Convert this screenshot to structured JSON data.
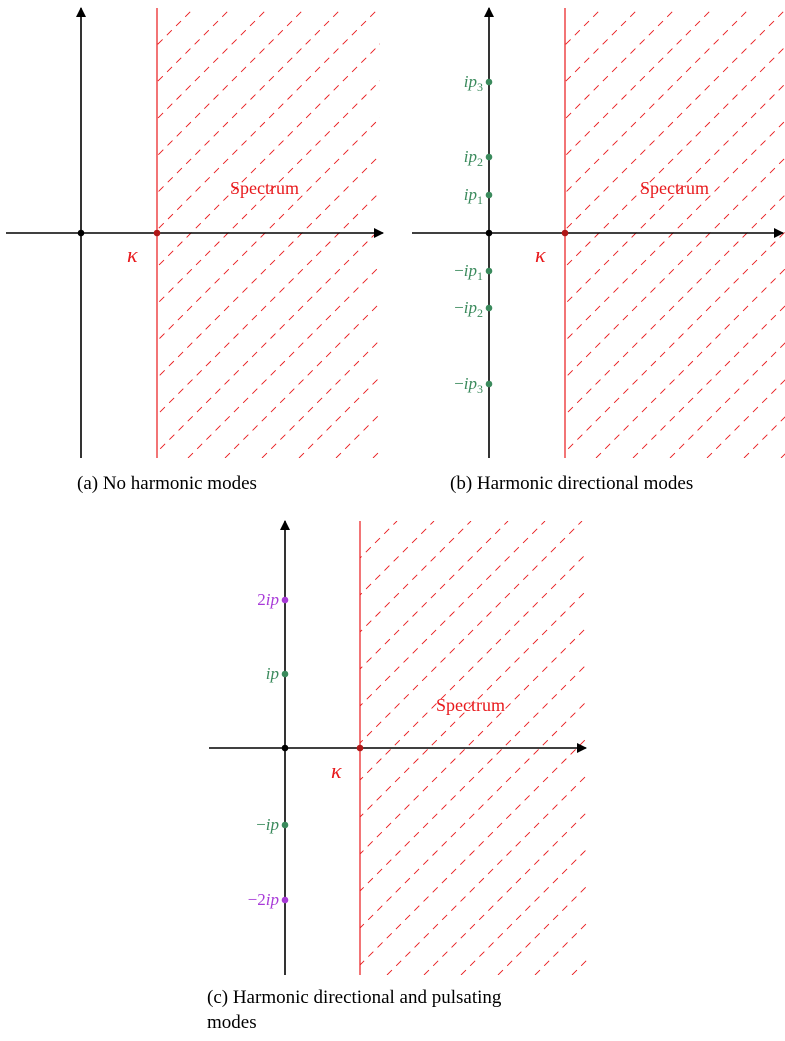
{
  "colors": {
    "axis": "#000000",
    "spectrum": "#e8191c",
    "directional": "#3a8a5c",
    "pulsating": "#a83ad8"
  },
  "panels": [
    {
      "id": "a",
      "caption": "(a) No harmonic modes",
      "spectrum_label": "Spectrum",
      "threshold_label": "κ",
      "points": []
    },
    {
      "id": "b",
      "caption": "(b) Harmonic directional modes",
      "spectrum_label": "Spectrum",
      "threshold_label": "κ",
      "points": [
        {
          "base": "ip",
          "sub": "3",
          "sign": "",
          "kind": "directional"
        },
        {
          "base": "ip",
          "sub": "2",
          "sign": "",
          "kind": "directional"
        },
        {
          "base": "ip",
          "sub": "1",
          "sign": "",
          "kind": "directional"
        },
        {
          "base": "ip",
          "sub": "1",
          "sign": "−",
          "kind": "directional"
        },
        {
          "base": "ip",
          "sub": "2",
          "sign": "−",
          "kind": "directional"
        },
        {
          "base": "ip",
          "sub": "3",
          "sign": "−",
          "kind": "directional"
        }
      ]
    },
    {
      "id": "c",
      "caption_line1": "(c) Harmonic directional and pulsating",
      "caption_line2": "modes",
      "spectrum_label": "Spectrum",
      "threshold_label": "κ",
      "points": [
        {
          "coef": "2",
          "base": "ip",
          "sign": "",
          "kind": "pulsating"
        },
        {
          "coef": "",
          "base": "ip",
          "sign": "",
          "kind": "directional"
        },
        {
          "coef": "",
          "base": "ip",
          "sign": "−",
          "kind": "directional"
        },
        {
          "coef": "2",
          "base": "ip",
          "sign": "−",
          "kind": "pulsating"
        }
      ]
    }
  ]
}
